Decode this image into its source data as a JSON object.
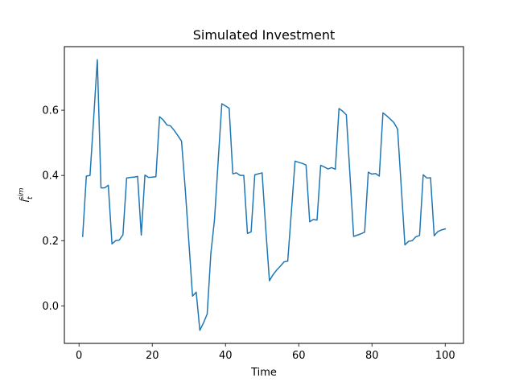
{
  "chart_data": {
    "type": "line",
    "title": "Simulated Investment",
    "xlabel": "Time",
    "ylabel": {
      "base": "i",
      "sub": "t",
      "sup": "sim"
    },
    "xlim": [
      -4,
      105
    ],
    "ylim": [
      -0.115,
      0.795
    ],
    "xticks": [
      0,
      20,
      40,
      60,
      80,
      100
    ],
    "yticks": [
      0.0,
      0.2,
      0.4,
      0.6
    ],
    "ytick_labels": [
      "0.0",
      "0.2",
      "0.4",
      "0.6"
    ],
    "grid": false,
    "series": [
      {
        "color": "#1f77b4",
        "x": [
          1,
          2,
          3,
          4,
          5,
          6,
          7,
          8,
          9,
          10,
          11,
          12,
          13,
          14,
          15,
          16,
          17,
          18,
          19,
          20,
          21,
          22,
          23,
          24,
          25,
          26,
          27,
          28,
          29,
          30,
          31,
          32,
          33,
          34,
          35,
          36,
          37,
          38,
          39,
          40,
          41,
          42,
          43,
          44,
          45,
          46,
          47,
          48,
          49,
          50,
          51,
          52,
          53,
          54,
          55,
          56,
          57,
          58,
          59,
          60,
          61,
          62,
          63,
          64,
          65,
          66,
          67,
          68,
          69,
          70,
          71,
          72,
          73,
          74,
          75,
          76,
          77,
          78,
          79,
          80,
          81,
          82,
          83,
          84,
          85,
          86,
          87,
          88,
          89,
          90,
          91,
          92,
          93,
          94,
          95,
          96,
          97,
          98,
          99,
          100
        ],
        "y": [
          0.213,
          0.398,
          0.4,
          0.575,
          0.755,
          0.362,
          0.362,
          0.37,
          0.19,
          0.2,
          0.202,
          0.218,
          0.392,
          0.394,
          0.395,
          0.397,
          0.217,
          0.401,
          0.394,
          0.395,
          0.396,
          0.58,
          0.57,
          0.555,
          0.552,
          0.538,
          0.522,
          0.505,
          0.36,
          0.195,
          0.03,
          0.042,
          -0.075,
          -0.052,
          -0.025,
          0.16,
          0.265,
          0.444,
          0.62,
          0.613,
          0.606,
          0.405,
          0.408,
          0.4,
          0.4,
          0.222,
          0.227,
          0.402,
          0.405,
          0.408,
          0.235,
          0.077,
          0.096,
          0.11,
          0.122,
          0.135,
          0.137,
          0.29,
          0.444,
          0.44,
          0.437,
          0.432,
          0.258,
          0.265,
          0.263,
          0.431,
          0.426,
          0.42,
          0.424,
          0.419,
          0.605,
          0.597,
          0.586,
          0.4,
          0.213,
          0.217,
          0.221,
          0.226,
          0.41,
          0.404,
          0.406,
          0.398,
          0.592,
          0.583,
          0.573,
          0.562,
          0.542,
          0.365,
          0.187,
          0.198,
          0.2,
          0.212,
          0.216,
          0.402,
          0.392,
          0.393,
          0.215,
          0.228,
          0.233,
          0.236
        ]
      }
    ]
  }
}
